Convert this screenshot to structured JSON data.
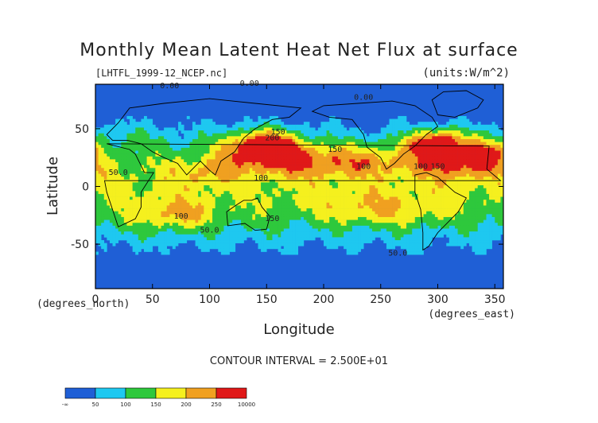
{
  "chart_data": {
    "type": "heatmap",
    "title": "Monthly Mean Latent Heat Net Flux at surface",
    "source_label": "[LHTFL_1999-12_NCEP.nc]",
    "units_label": "(units:W/m^2)",
    "xlabel": "Longitude",
    "ylabel": "Latitude",
    "x_unit_label": "(degrees_east)",
    "y_unit_label": "(degrees_north)",
    "xlim": [
      0,
      357.5
    ],
    "ylim": [
      -88.5,
      88.5
    ],
    "x_ticks": [
      0,
      50,
      100,
      150,
      200,
      250,
      300,
      350
    ],
    "y_ticks": [
      -50,
      0,
      50
    ],
    "contour_interval_label": "CONTOUR INTERVAL = 2.500E+01",
    "colorbar": {
      "levels": [
        "-∞",
        "50",
        "100",
        "150",
        "200",
        "250",
        "10000"
      ],
      "colors": [
        "#1f5fd6",
        "#1ec8f0",
        "#2ec83c",
        "#f5f01e",
        "#f0a020",
        "#e01818"
      ]
    },
    "contour_labels": [
      {
        "text": "0.00",
        "lon": 65,
        "lat": 85
      },
      {
        "text": "0.00",
        "lon": 135,
        "lat": 87
      },
      {
        "text": "0.00",
        "lon": 235,
        "lat": 75
      },
      {
        "text": "150",
        "lon": 160,
        "lat": 45
      },
      {
        "text": "150",
        "lon": 210,
        "lat": 30
      },
      {
        "text": "100",
        "lon": 235,
        "lat": 15
      },
      {
        "text": "100",
        "lon": 285,
        "lat": 15
      },
      {
        "text": "50.0",
        "lon": 20,
        "lat": 10
      },
      {
        "text": "100",
        "lon": 75,
        "lat": -28
      },
      {
        "text": "50.0",
        "lon": 100,
        "lat": -40
      },
      {
        "text": "100",
        "lon": 145,
        "lat": 5
      },
      {
        "text": "150",
        "lon": 155,
        "lat": -30
      },
      {
        "text": "50.0",
        "lon": 265,
        "lat": -60
      },
      {
        "text": "200",
        "lon": 155,
        "lat": 40
      },
      {
        "text": "150",
        "lon": 300,
        "lat": 15
      }
    ]
  }
}
